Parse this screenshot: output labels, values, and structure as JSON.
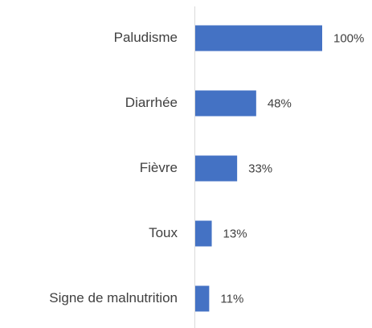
{
  "chart_data": {
    "type": "bar",
    "orientation": "horizontal",
    "categories": [
      "Paludisme",
      "Diarrhée",
      "Fièvre",
      "Toux",
      "Signe de malnutrition"
    ],
    "values": [
      100,
      48,
      33,
      13,
      11
    ],
    "value_labels": [
      "100%",
      "48%",
      "33%",
      "13%",
      "11%"
    ],
    "color": "#4472c4",
    "xlim": [
      0,
      100
    ]
  }
}
